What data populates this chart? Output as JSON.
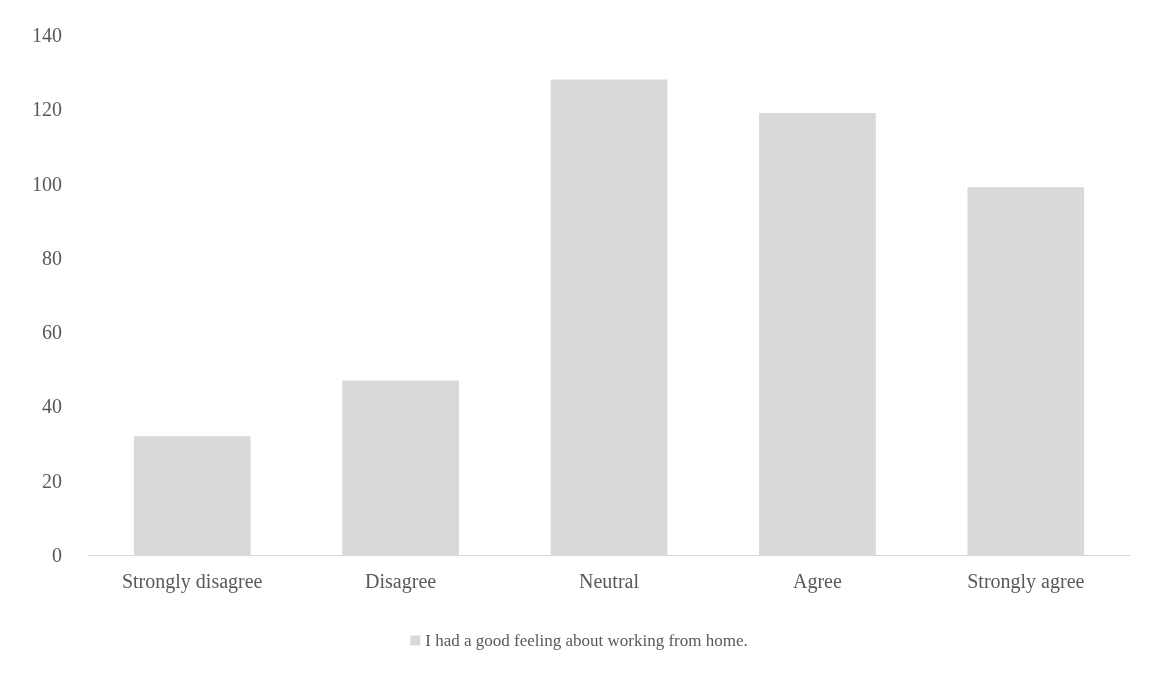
{
  "chart_data": {
    "type": "bar",
    "categories": [
      "Strongly disagree",
      "Disagree",
      "Neutral",
      "Agree",
      "Strongly agree"
    ],
    "series": [
      {
        "name": "I had a good feeling about working from home.",
        "color": "#d9d9d9",
        "values": [
          32,
          47,
          128,
          119,
          99
        ]
      }
    ],
    "ylim": [
      0,
      140
    ],
    "yticks": [
      0,
      20,
      40,
      60,
      80,
      100,
      120,
      140
    ],
    "grid": false,
    "legend": "bottom"
  }
}
